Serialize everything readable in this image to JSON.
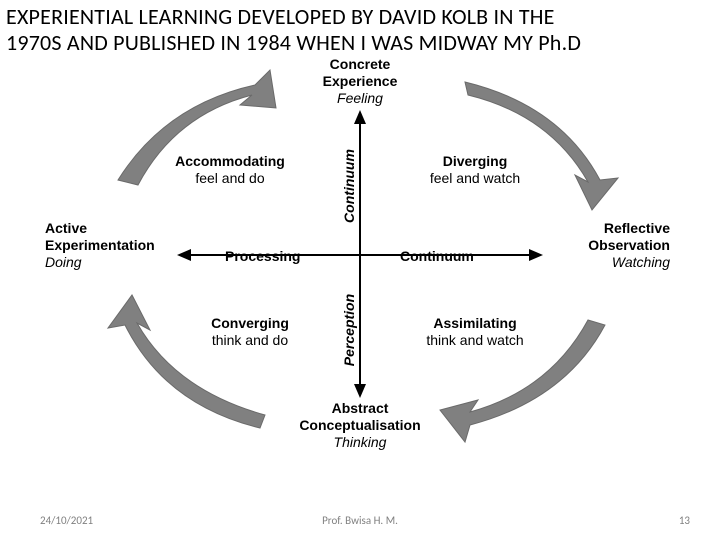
{
  "title_line1": "EXPERIENTIAL LEARNING DEVELOPED BY DAVID KOLB IN THE",
  "title_line2": "1970S AND PUBLISHED IN 1984 WHEN I WAS MIDWAY MY Ph.D",
  "diagram": {
    "type": "flowchart",
    "axis_color": "#000000",
    "arrow_color": "#808080",
    "arrow_fill": "#808080",
    "poles": {
      "top": {
        "label": "Concrete\nExperience",
        "sub": "Feeling"
      },
      "right": {
        "label": "Reflective\nObservation",
        "sub": "Watching"
      },
      "bottom": {
        "label": "Abstract\nConceptualisation",
        "sub": "Thinking"
      },
      "left": {
        "label": "Active\nExperimentation",
        "sub": "Doing"
      }
    },
    "vertical_axis_label_upper": "Continuum",
    "vertical_axis_label_lower": "Perception",
    "horizontal_axis_label_left": "Processing",
    "horizontal_axis_label_right": "Continuum",
    "quadrants": {
      "top_left": {
        "name": "Accommodating",
        "desc": "feel and do"
      },
      "top_right": {
        "name": "Diverging",
        "desc": "feel and watch"
      },
      "bottom_left": {
        "name": "Converging",
        "desc": "think and do"
      },
      "bottom_right": {
        "name": "Assimilating",
        "desc": "think and watch"
      }
    }
  },
  "footer": {
    "date": "24/10/2021",
    "author": "Prof. Bwisa H. M.",
    "page": "13"
  }
}
